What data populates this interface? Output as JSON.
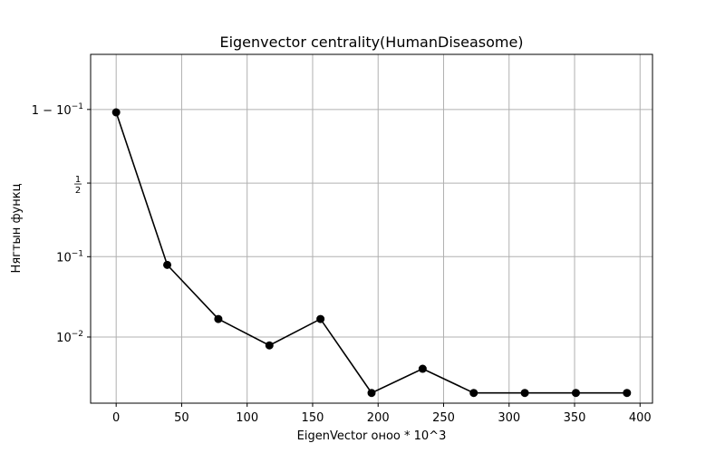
{
  "chart_data": {
    "type": "line",
    "title": "Eigenvector centrality(HumanDiseasome)",
    "xlabel": "EigenVector оноо * 10^3",
    "ylabel": "Нягтын функц",
    "y_scale": "logit",
    "xlim": [
      -19.5,
      409.5
    ],
    "ylim": [
      0.0014,
      0.979
    ],
    "grid": true,
    "x_ticks": [
      0,
      50,
      100,
      150,
      200,
      250,
      300,
      350,
      400
    ],
    "x_tick_labels": [
      "0",
      "50",
      "100",
      "150",
      "200",
      "250",
      "300",
      "350",
      "400"
    ],
    "y_ticks": [
      0.01,
      0.1,
      0.5,
      0.9
    ],
    "y_tick_labels": [
      {
        "main": "10",
        "sup": "−2"
      },
      {
        "main": "10",
        "sup": "−1"
      },
      {
        "frac_num": "1",
        "frac_den": "2"
      },
      {
        "main": "1 − 10",
        "sup": "−1"
      }
    ],
    "series": [
      {
        "color": "#000000",
        "marker": "circle",
        "x": [
          0,
          39,
          78,
          117,
          156,
          195,
          234,
          273,
          312,
          351,
          390
        ],
        "y": [
          0.892,
          0.08,
          0.017,
          0.0078,
          0.017,
          0.0019,
          0.0039,
          0.0019,
          0.0019,
          0.0019,
          0.0019
        ]
      }
    ]
  }
}
